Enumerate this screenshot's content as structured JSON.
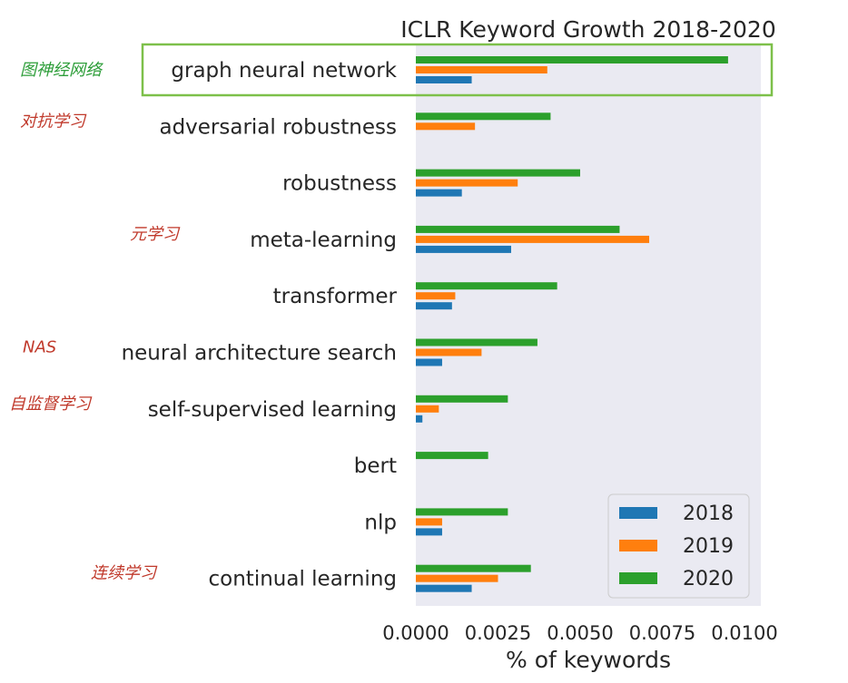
{
  "chart_data": {
    "type": "bar",
    "orientation": "horizontal",
    "title": "ICLR Keyword Growth 2018-2020",
    "xlabel": "% of keywords",
    "ylabel": "",
    "xlim": [
      0,
      0.01
    ],
    "xticks": [
      "0.0000",
      "0.0025",
      "0.0050",
      "0.0075",
      "0.0100"
    ],
    "categories": [
      "graph neural network",
      "adversarial robustness",
      "robustness",
      "meta-learning",
      "transformer",
      "neural architecture search",
      "self-supervised learning",
      "bert",
      "nlp",
      "continual learning"
    ],
    "series": [
      {
        "name": "2018",
        "color": "#1f77b4",
        "values": [
          0.0017,
          0.0,
          0.0014,
          0.0029,
          0.0011,
          0.0008,
          0.0002,
          0.0,
          0.0008,
          0.0017
        ]
      },
      {
        "name": "2019",
        "color": "#ff7f0e",
        "values": [
          0.004,
          0.0018,
          0.0031,
          0.0071,
          0.0012,
          0.002,
          0.0007,
          0.0,
          0.0008,
          0.0025
        ]
      },
      {
        "name": "2020",
        "color": "#2ca02c",
        "values": [
          0.0095,
          0.0041,
          0.005,
          0.0062,
          0.0043,
          0.0037,
          0.0028,
          0.0022,
          0.0028,
          0.0035
        ]
      }
    ],
    "grid": false,
    "legend_position": "lower-right",
    "background_color": "#eaeaf2",
    "highlighted_category": "graph neural network",
    "highlight_color": "#7dc04a"
  },
  "annotations": [
    {
      "category": "graph neural network",
      "text": "图神经网络",
      "color": "#2e9e3a"
    },
    {
      "category": "adversarial robustness",
      "text": "对抗学习",
      "color": "#c0392b"
    },
    {
      "category": "meta-learning",
      "text": "元学习",
      "color": "#c0392b"
    },
    {
      "category": "neural architecture search",
      "text": "NAS",
      "color": "#c0392b"
    },
    {
      "category": "self-supervised learning",
      "text": "自监督学习",
      "color": "#c0392b"
    },
    {
      "category": "continual learning",
      "text": "连续学习",
      "color": "#c0392b"
    }
  ]
}
